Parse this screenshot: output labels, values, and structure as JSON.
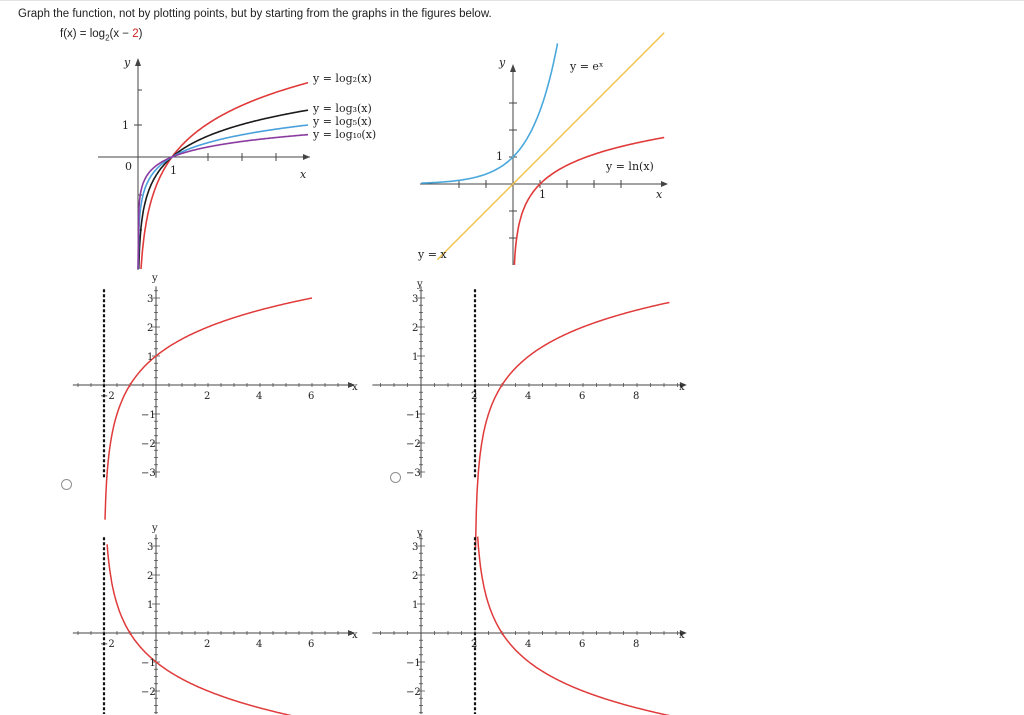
{
  "question": {
    "prompt": "Graph the function, not by plotting points, but by starting from the graphs in the figures below.",
    "function_lhs": "f(x) = log",
    "function_sub": "2",
    "function_open": "(x − ",
    "function_shift": "2",
    "function_close": ")"
  },
  "reference_log": {
    "y_axis": "y",
    "x_axis": "x",
    "origin": "0",
    "one_x": "1",
    "one_y": "1",
    "curve_labels": {
      "log2": "y = log₂(x)",
      "log3": "y = log₃(x)",
      "log5": "y = log₅(x)",
      "log10": "y = log₁₀(x)"
    },
    "colors": {
      "log2": "#e03a3a",
      "log3": "#1a1a1a",
      "log5": "#4aa0dc",
      "log10": "#8a3aa0"
    }
  },
  "reference_exp": {
    "y_axis": "y",
    "x_axis": "x",
    "one_y": "1",
    "one_x": "1",
    "labels": {
      "exp": "y = eˣ",
      "ln": "y = ln(x)",
      "identity": "y = x"
    },
    "colors": {
      "exp": "#4aa8dc",
      "ln": "#e03a3a",
      "identity": "#f2c24a"
    }
  },
  "choices": [
    {
      "id": "A",
      "x_label": "x",
      "y_label": "y",
      "x_ticks": [
        "−2",
        "2",
        "4",
        "6"
      ],
      "y_ticks": [
        "3",
        "2",
        "1",
        "−1",
        "−2",
        "−3"
      ]
    },
    {
      "id": "B",
      "x_label": "x",
      "y_label": "y",
      "x_ticks": [
        "2",
        "4",
        "6",
        "8"
      ],
      "y_ticks": [
        "3",
        "2",
        "1",
        "−1",
        "−2",
        "−3"
      ]
    },
    {
      "id": "C",
      "x_label": "x",
      "y_label": "y",
      "x_ticks": [
        "−2",
        "2",
        "4",
        "6"
      ],
      "y_ticks": [
        "3",
        "2",
        "1",
        "−1",
        "−2"
      ]
    },
    {
      "id": "D",
      "x_label": "x",
      "y_label": "y",
      "x_ticks": [
        "2",
        "4",
        "6",
        "8"
      ],
      "y_ticks": [
        "3",
        "2",
        "1",
        "−1",
        "−2"
      ]
    }
  ],
  "curve_color": "#e03a3a"
}
